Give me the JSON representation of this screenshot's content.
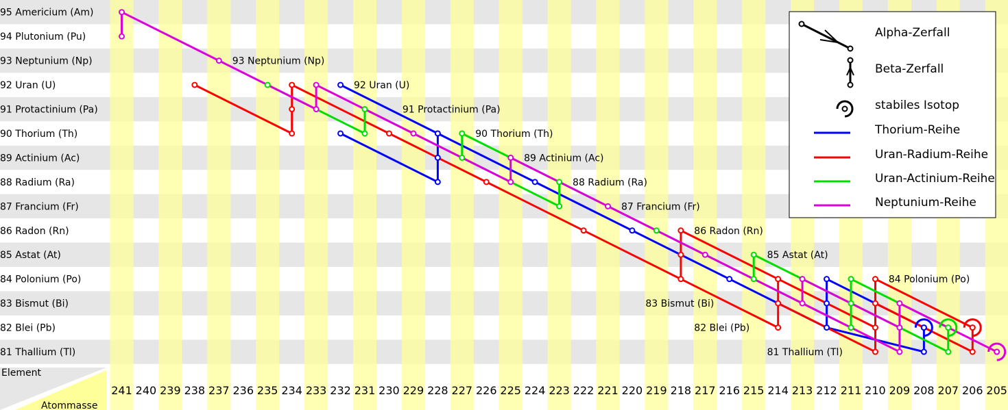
{
  "chart_data": {
    "type": "decay-chain-diagram",
    "corner": {
      "row_header": "Element",
      "col_header": "Atommasse"
    },
    "elements": [
      {
        "z": 95,
        "label": "95 Americium (Am)"
      },
      {
        "z": 94,
        "label": "94 Plutonium (Pu)"
      },
      {
        "z": 93,
        "label": "93 Neptunium (Np)"
      },
      {
        "z": 92,
        "label": "92 Uran (U)"
      },
      {
        "z": 91,
        "label": "91 Protactinium (Pa)"
      },
      {
        "z": 90,
        "label": "90 Thorium (Th)"
      },
      {
        "z": 89,
        "label": "89 Actinium (Ac)"
      },
      {
        "z": 88,
        "label": "88 Radium (Ra)"
      },
      {
        "z": 87,
        "label": "87 Francium (Fr)"
      },
      {
        "z": 86,
        "label": "86 Radon (Rn)"
      },
      {
        "z": 85,
        "label": "85 Astat (At)"
      },
      {
        "z": 84,
        "label": "84 Polonium (Po)"
      },
      {
        "z": 83,
        "label": "83 Bismut (Bi)"
      },
      {
        "z": 82,
        "label": "82 Blei (Pb)"
      },
      {
        "z": 81,
        "label": "81 Thallium (Tl)"
      }
    ],
    "mass_numbers": [
      "241",
      "240",
      "239",
      "238",
      "237",
      "236",
      "235",
      "234",
      "233",
      "232",
      "231",
      "230",
      "229",
      "228",
      "227",
      "226",
      "225",
      "224",
      "223",
      "222",
      "221",
      "220",
      "219",
      "218",
      "217",
      "216",
      "215",
      "214",
      "213",
      "212",
      "211",
      "210",
      "209",
      "208",
      "207",
      "206",
      "205"
    ],
    "inline_labels": [
      {
        "text": "93 Neptunium (Np)",
        "z": 93,
        "a": 236
      },
      {
        "text": "92 Uran (U)",
        "z": 92,
        "a": 231
      },
      {
        "text": "91 Protactinium (Pa)",
        "z": 91,
        "a": 229
      },
      {
        "text": "90 Thorium (Th)",
        "z": 90,
        "a": 226
      },
      {
        "text": "89 Actinium (Ac)",
        "z": 89,
        "a": 224
      },
      {
        "text": "88 Radium (Ra)",
        "z": 88,
        "a": 222
      },
      {
        "text": "87 Francium (Fr)",
        "z": 87,
        "a": 220
      },
      {
        "text": "86 Radon (Rn)",
        "z": 86,
        "a": 217
      },
      {
        "text": "85 Astat (At)",
        "z": 85,
        "a": 214
      },
      {
        "text": "84 Polonium (Po)",
        "z": 84,
        "a": 209
      },
      {
        "text": "83 Bismut (Bi)",
        "z": 83,
        "a": 219
      },
      {
        "text": "82 Blei (Pb)",
        "z": 82,
        "a": 217
      },
      {
        "text": "81 Thallium (Tl)",
        "z": 81,
        "a": 214
      }
    ],
    "series": [
      {
        "name": "Thorium-Reihe",
        "color": "#0000ff",
        "stable": [
          82,
          208
        ],
        "nuclides": [
          [
            92,
            232
          ],
          [
            90,
            232
          ],
          [
            90,
            228
          ],
          [
            88,
            228
          ],
          [
            89,
            228
          ],
          [
            90,
            228
          ],
          [
            88,
            224
          ],
          [
            86,
            220
          ],
          [
            84,
            216
          ],
          [
            82,
            212
          ],
          [
            83,
            212
          ],
          [
            84,
            212
          ],
          [
            81,
            208
          ],
          [
            82,
            208
          ]
        ],
        "path": [
          [
            92,
            232
          ],
          [
            90,
            228
          ],
          [
            88,
            224
          ],
          [
            86,
            220
          ],
          [
            84,
            216
          ],
          [
            82,
            212
          ],
          [
            81,
            208
          ],
          [
            82,
            208
          ]
        ],
        "branches": [
          [
            [
              90,
              232
            ],
            [
              88,
              228
            ],
            [
              89,
              228
            ],
            [
              90,
              228
            ]
          ],
          [
            [
              82,
              212
            ],
            [
              83,
              212
            ],
            [
              84,
              212
            ],
            [
              82,
              208
            ]
          ]
        ]
      },
      {
        "name": "Uran-Radium-Reihe",
        "color": "#ff0000",
        "stable": [
          82,
          206
        ],
        "nuclides": [
          [
            92,
            238
          ],
          [
            90,
            234
          ],
          [
            91,
            234
          ],
          [
            92,
            234
          ],
          [
            90,
            230
          ],
          [
            88,
            226
          ],
          [
            86,
            222
          ],
          [
            84,
            218
          ],
          [
            85,
            218
          ],
          [
            86,
            218
          ],
          [
            82,
            214
          ],
          [
            83,
            214
          ],
          [
            84,
            214
          ],
          [
            81,
            210
          ],
          [
            82,
            210
          ],
          [
            83,
            210
          ],
          [
            84,
            210
          ],
          [
            81,
            206
          ],
          [
            82,
            206
          ]
        ],
        "path": [
          [
            92,
            238
          ],
          [
            90,
            234
          ],
          [
            91,
            234
          ],
          [
            92,
            234
          ],
          [
            90,
            230
          ],
          [
            88,
            226
          ],
          [
            86,
            222
          ],
          [
            84,
            218
          ],
          [
            82,
            214
          ],
          [
            83,
            214
          ],
          [
            84,
            214
          ],
          [
            82,
            210
          ],
          [
            83,
            210
          ],
          [
            84,
            210
          ],
          [
            82,
            206
          ]
        ],
        "branches": [
          [
            [
              84,
              218
            ],
            [
              85,
              218
            ],
            [
              86,
              218
            ],
            [
              84,
              214
            ]
          ],
          [
            [
              83,
              214
            ],
            [
              81,
              210
            ],
            [
              82,
              210
            ]
          ],
          [
            [
              83,
              210
            ],
            [
              81,
              206
            ],
            [
              82,
              206
            ]
          ]
        ]
      },
      {
        "name": "Uran-Actinium-Reihe",
        "color": "#00dd00",
        "stable": [
          82,
          207
        ],
        "nuclides": [
          [
            92,
            235
          ],
          [
            90,
            231
          ],
          [
            91,
            231
          ],
          [
            89,
            227
          ],
          [
            90,
            227
          ],
          [
            88,
            223
          ],
          [
            87,
            223
          ],
          [
            86,
            219
          ],
          [
            84,
            215
          ],
          [
            85,
            215
          ],
          [
            82,
            211
          ],
          [
            83,
            211
          ],
          [
            84,
            211
          ],
          [
            81,
            207
          ],
          [
            82,
            207
          ]
        ],
        "path": [
          [
            92,
            235
          ],
          [
            90,
            231
          ],
          [
            91,
            231
          ],
          [
            89,
            227
          ],
          [
            90,
            227
          ],
          [
            88,
            223
          ],
          [
            86,
            219
          ],
          [
            84,
            215
          ],
          [
            82,
            211
          ],
          [
            83,
            211
          ],
          [
            84,
            211
          ],
          [
            82,
            207
          ]
        ],
        "branches": [
          [
            [
              89,
              227
            ],
            [
              87,
              223
            ],
            [
              88,
              223
            ]
          ],
          [
            [
              84,
              215
            ],
            [
              85,
              215
            ],
            [
              83,
              211
            ]
          ],
          [
            [
              83,
              211
            ],
            [
              81,
              207
            ],
            [
              82,
              207
            ]
          ]
        ]
      },
      {
        "name": "Neptunium-Reihe",
        "color": "#dd00dd",
        "stable": [
          81,
          205
        ],
        "nuclides": [
          [
            95,
            241
          ],
          [
            94,
            241
          ],
          [
            93,
            237
          ],
          [
            91,
            233
          ],
          [
            92,
            233
          ],
          [
            90,
            229
          ],
          [
            88,
            225
          ],
          [
            89,
            225
          ],
          [
            87,
            221
          ],
          [
            85,
            217
          ],
          [
            83,
            213
          ],
          [
            84,
            213
          ],
          [
            81,
            209
          ],
          [
            82,
            209
          ],
          [
            83,
            209
          ],
          [
            81,
            205
          ]
        ],
        "path": [
          [
            95,
            241
          ],
          [
            93,
            237
          ],
          [
            91,
            233
          ],
          [
            92,
            233
          ],
          [
            90,
            229
          ],
          [
            88,
            225
          ],
          [
            89,
            225
          ],
          [
            87,
            221
          ],
          [
            85,
            217
          ],
          [
            83,
            213
          ],
          [
            81,
            209
          ],
          [
            82,
            209
          ],
          [
            83,
            209
          ],
          [
            81,
            205
          ]
        ],
        "branches": [
          [
            [
              95,
              241
            ],
            [
              94,
              241
            ]
          ],
          [
            [
              83,
              213
            ],
            [
              84,
              213
            ],
            [
              82,
              209
            ]
          ]
        ]
      }
    ],
    "legend": {
      "alpha": "Alpha-Zerfall",
      "beta": "Beta-Zerfall",
      "stable": "stabiles Isotop",
      "placement": "top-right",
      "series": [
        "Thorium-Reihe",
        "Uran-Radium-Reihe",
        "Uran-Actinium-Reihe",
        "Neptunium-Reihe"
      ]
    },
    "colors": {
      "row_band": "#e6e6e6",
      "col_band": "#ffff99",
      "col_band_on_row": "#f0f08c"
    }
  }
}
